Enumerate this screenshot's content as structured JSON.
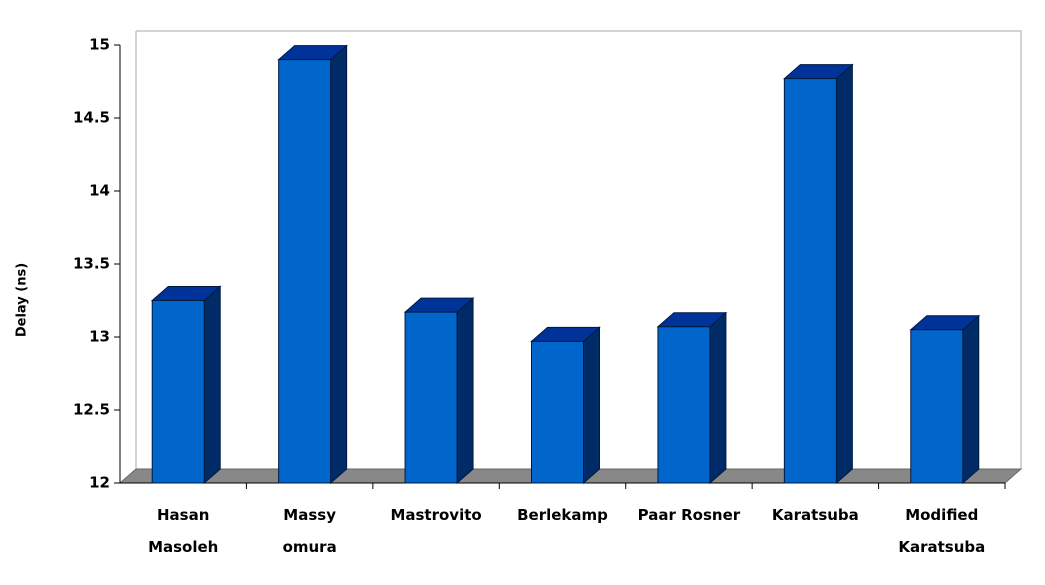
{
  "chart_data": {
    "type": "bar3d",
    "y_label": "Delay (ns)",
    "categories": [
      "Hasan\nMasoleh",
      "Massy\nomura",
      "Mastrovito",
      "Berlekamp",
      "Paar Rosner",
      "Karatsuba",
      "Modified\nKaratsuba"
    ],
    "values": [
      13.25,
      14.9,
      13.17,
      12.97,
      13.07,
      14.77,
      13.05
    ],
    "color": "#0066cc",
    "ylim": [
      12,
      15
    ],
    "yticks": [
      12,
      12.5,
      13,
      13.5,
      14,
      14.5,
      15
    ]
  }
}
